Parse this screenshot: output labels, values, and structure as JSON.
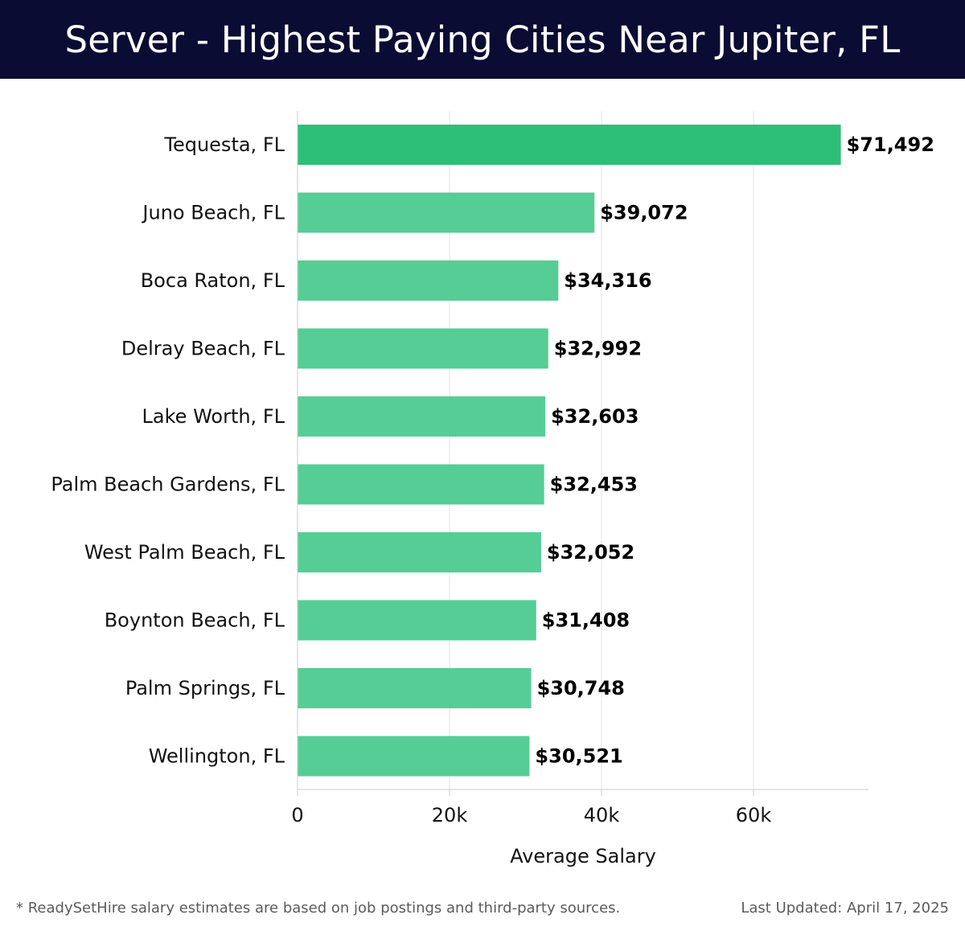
{
  "header": {
    "title": "Server - Highest Paying Cities Near Jupiter, FL"
  },
  "chart_data": {
    "type": "bar",
    "orientation": "horizontal",
    "title": "Server - Highest Paying Cities Near Jupiter, FL",
    "xlabel": "Average Salary",
    "ylabel": "",
    "categories": [
      "Tequesta, FL",
      "Juno Beach, FL",
      "Boca Raton, FL",
      "Delray Beach, FL",
      "Lake Worth, FL",
      "Palm Beach Gardens, FL",
      "West Palm Beach, FL",
      "Boynton Beach, FL",
      "Palm Springs, FL",
      "Wellington, FL"
    ],
    "values": [
      71492,
      39072,
      34316,
      32992,
      32603,
      32453,
      32052,
      31408,
      30748,
      30521
    ],
    "value_labels": [
      "$71,492",
      "$39,072",
      "$34,316",
      "$32,992",
      "$32,603",
      "$32,453",
      "$32,052",
      "$31,408",
      "$30,748",
      "$30,521"
    ],
    "xlim": [
      0,
      75000
    ],
    "xticks": [
      0,
      20000,
      40000,
      60000
    ],
    "xtick_labels": [
      "0",
      "20k",
      "40k",
      "60k"
    ],
    "grid": true,
    "colors": {
      "highlight": "#2dbf78",
      "bar": "#56cd95",
      "grid": "#e3e3e3",
      "axis": "#cccccc",
      "text": "#111111"
    }
  },
  "footer": {
    "note": "* ReadySetHire salary estimates are based on job postings and third-party sources.",
    "updated": "Last Updated: April 17, 2025"
  }
}
